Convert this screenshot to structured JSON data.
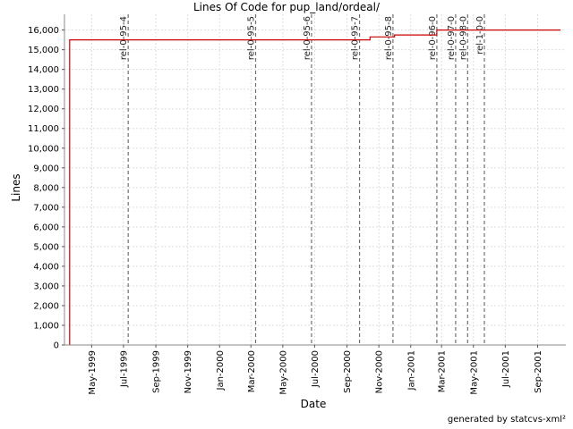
{
  "chart_data": {
    "type": "line",
    "title": "Lines Of Code for pup_land/ordeal/",
    "xlabel": "Date",
    "ylabel": "Lines",
    "ylim": [
      0,
      16800
    ],
    "xlim": [
      "1999-03-10",
      "2001-10-25"
    ],
    "grid": true,
    "y_ticks": [
      0,
      1000,
      2000,
      3000,
      4000,
      5000,
      6000,
      7000,
      8000,
      9000,
      10000,
      11000,
      12000,
      13000,
      14000,
      15000,
      16000
    ],
    "y_tick_labels": [
      "0",
      "1,000",
      "2,000",
      "3,000",
      "4,000",
      "5,000",
      "6,000",
      "7,000",
      "8,000",
      "9,000",
      "10,000",
      "11,000",
      "12,000",
      "13,000",
      "14,000",
      "15,000",
      "16,000"
    ],
    "x_ticks": [
      {
        "date": "1999-05-01",
        "label": "May-1999"
      },
      {
        "date": "1999-07-01",
        "label": "Jul-1999"
      },
      {
        "date": "1999-09-01",
        "label": "Sep-1999"
      },
      {
        "date": "1999-11-01",
        "label": "Nov-1999"
      },
      {
        "date": "2000-01-01",
        "label": "Jan-2000"
      },
      {
        "date": "2000-03-01",
        "label": "Mar-2000"
      },
      {
        "date": "2000-05-01",
        "label": "May-2000"
      },
      {
        "date": "2000-07-01",
        "label": "Jul-2000"
      },
      {
        "date": "2000-09-01",
        "label": "Sep-2000"
      },
      {
        "date": "2000-11-01",
        "label": "Nov-2000"
      },
      {
        "date": "2001-01-01",
        "label": "Jan-2001"
      },
      {
        "date": "2001-03-01",
        "label": "Mar-2001"
      },
      {
        "date": "2001-05-01",
        "label": "May-2001"
      },
      {
        "date": "2001-07-01",
        "label": "Jul-2001"
      },
      {
        "date": "2001-09-01",
        "label": "Sep-2001"
      }
    ],
    "series": [
      {
        "color": "#cc0000",
        "step": true,
        "points": [
          {
            "x": "1999-03-20",
            "y": 0
          },
          {
            "x": "1999-03-20",
            "y": 15500
          },
          {
            "x": "2000-10-15",
            "y": 15500
          },
          {
            "x": "2000-10-15",
            "y": 15650
          },
          {
            "x": "2000-12-01",
            "y": 15650
          },
          {
            "x": "2000-12-01",
            "y": 15750
          },
          {
            "x": "2001-02-20",
            "y": 15750
          },
          {
            "x": "2001-02-20",
            "y": 16000
          },
          {
            "x": "2001-10-15",
            "y": 16000
          }
        ]
      }
    ],
    "annotations": [
      {
        "label": "rel-0-95-4",
        "date": "1999-07-10"
      },
      {
        "label": "rel-0-95-5",
        "date": "2000-03-10"
      },
      {
        "label": "rel-0-95-6",
        "date": "2000-06-25"
      },
      {
        "label": "rel-0-95-7",
        "date": "2000-09-25"
      },
      {
        "label": "rel-0-95-8",
        "date": "2000-11-28"
      },
      {
        "label": "rel-0-96-0",
        "date": "2001-02-20"
      },
      {
        "label": "rel-0-97-0",
        "date": "2001-03-28"
      },
      {
        "label": "rel-0-98-0",
        "date": "2001-04-20"
      },
      {
        "label": "rel-1-0-0",
        "date": "2001-05-22"
      }
    ],
    "colors": {
      "line": "#cc0000",
      "grid": "#dddddd",
      "annotation": "#707070"
    }
  },
  "footer": "generated by statcvs-xml²"
}
